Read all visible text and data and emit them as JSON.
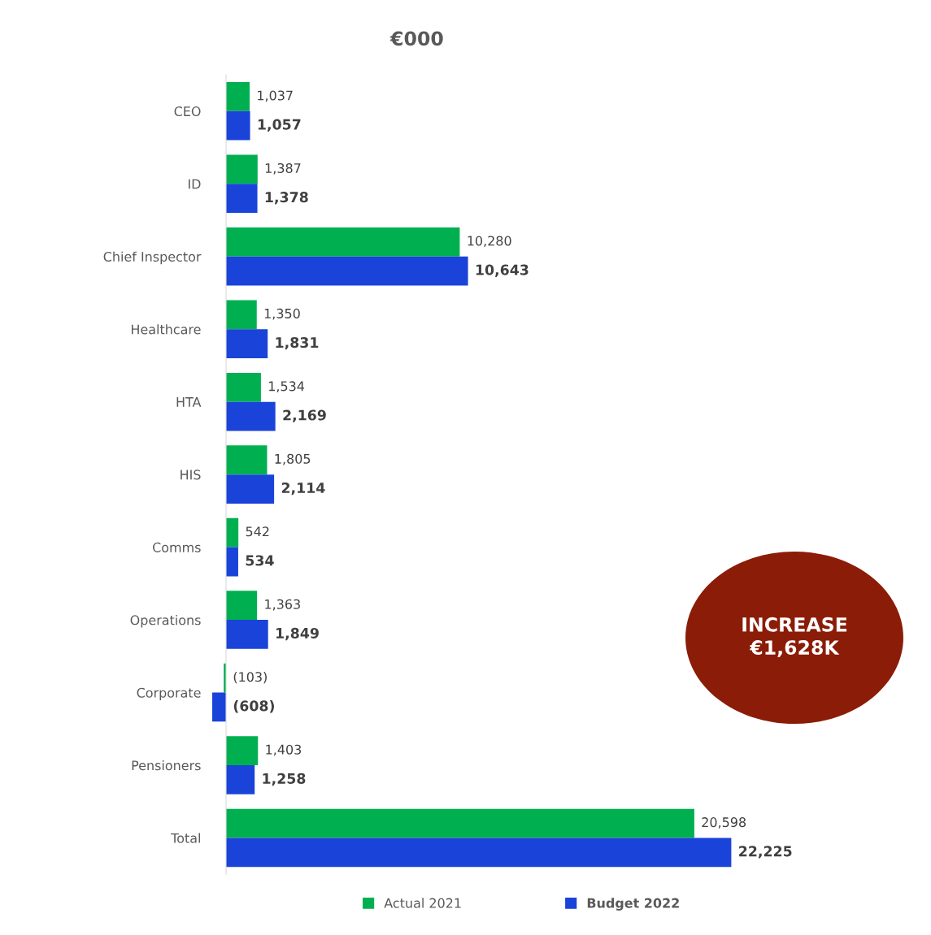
{
  "chart_data": {
    "type": "bar",
    "orientation": "horizontal",
    "title": "€000",
    "categories": [
      "CEO",
      "ID",
      "Chief Inspector",
      "Healthcare",
      "HTA",
      "HIS",
      "Comms",
      "Operations",
      "Corporate",
      "Pensioners",
      "Total"
    ],
    "series": [
      {
        "name": "Actual 2021",
        "color": "#00b050",
        "values": [
          1037,
          1387,
          10280,
          1350,
          1534,
          1805,
          542,
          1363,
          -103,
          1403,
          20598
        ],
        "value_labels": [
          "1,037",
          "1,387",
          "10,280",
          "1,350",
          "1,534",
          "1,805",
          "542",
          "1,363",
          "(103)",
          "1,403",
          "20,598"
        ]
      },
      {
        "name": "Budget 2022",
        "color": "#1a43d9",
        "values": [
          1057,
          1378,
          10643,
          1831,
          2169,
          2114,
          534,
          1849,
          -608,
          1258,
          22225
        ],
        "value_labels": [
          "1,057",
          "1,378",
          "10,643",
          "1,831",
          "2,169",
          "2,114",
          "534",
          "1,849",
          "(608)",
          "1,258",
          "22,225"
        ]
      }
    ],
    "tick_labels": "y",
    "grid": false,
    "legend": "bottom",
    "annotations": [
      "INCREASE\n€1,628K"
    ]
  }
}
